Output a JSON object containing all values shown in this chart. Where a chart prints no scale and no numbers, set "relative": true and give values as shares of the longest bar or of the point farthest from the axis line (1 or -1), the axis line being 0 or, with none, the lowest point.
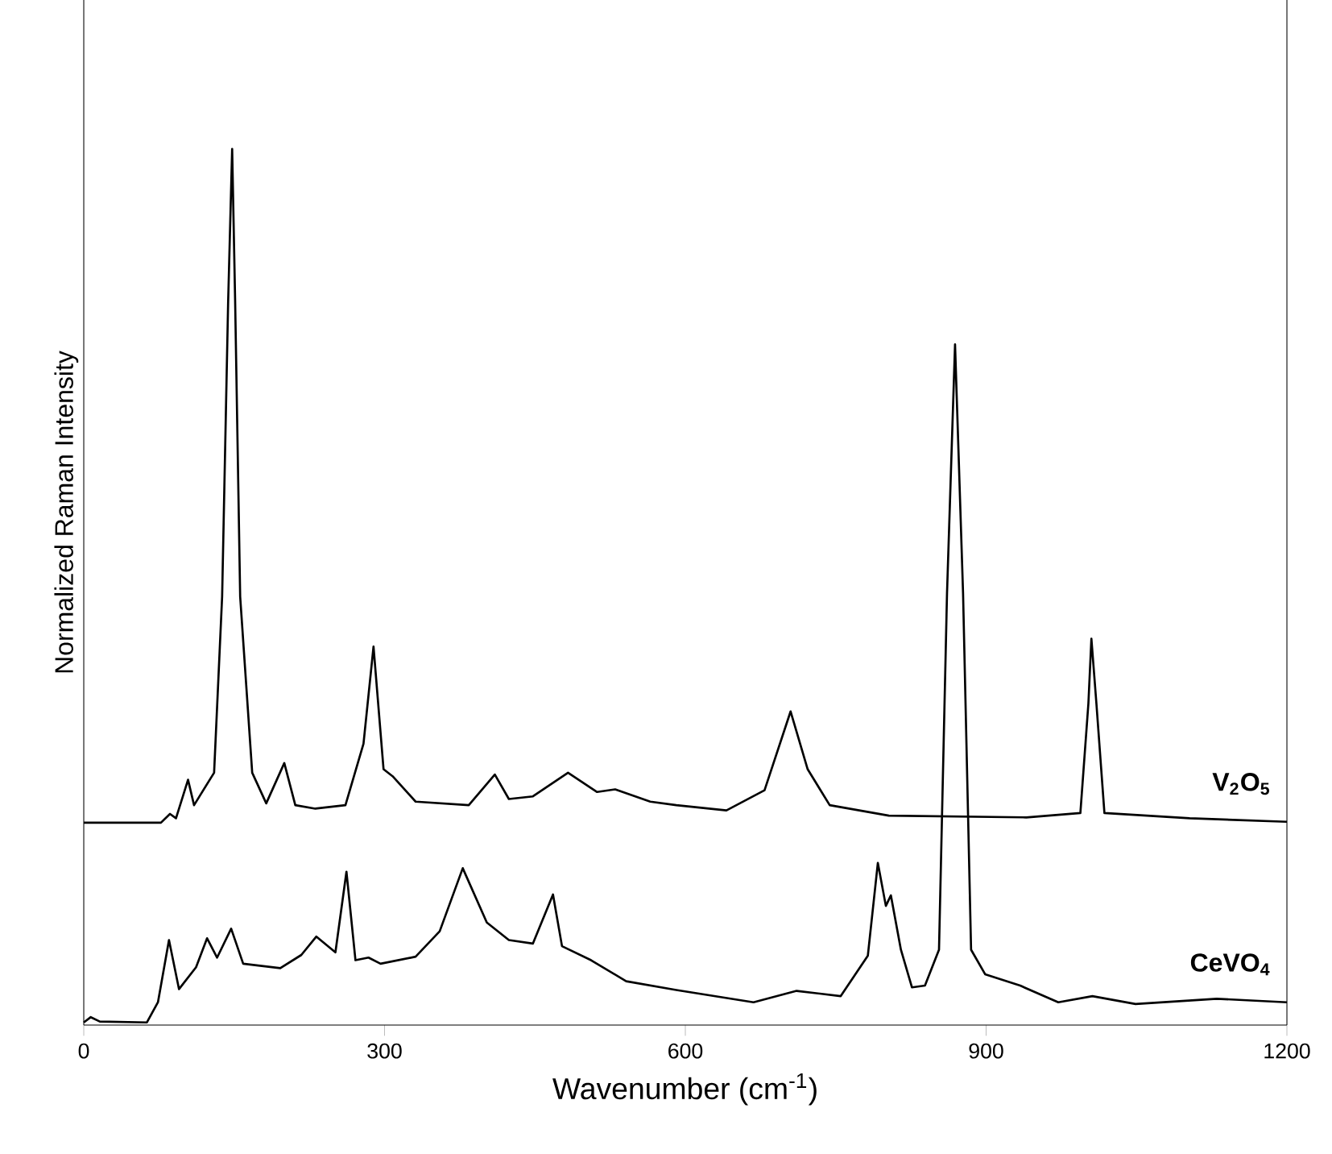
{
  "chart_data": {
    "type": "line",
    "relative": true,
    "xlabel": "Wavenumber (cm$^{-1}$)",
    "ylabel": "Normalized Raman Intensity",
    "xlim": [
      0,
      1200
    ],
    "xticks": [
      0,
      300,
      600,
      900,
      1200
    ],
    "tick_labels": "x",
    "line_style": "solid",
    "series": [
      {
        "name": "V$_{2}$O$_{5}$",
        "color": "#000000",
        "x": [
          0,
          40,
          77,
          86,
          92,
          104,
          110,
          130,
          138,
          144,
          148,
          151,
          156,
          168,
          182,
          200,
          211,
          231,
          261,
          279,
          289,
          299,
          308,
          331,
          384,
          410,
          424,
          448,
          483,
          512,
          530,
          565,
          591,
          641,
          679,
          705,
          722,
          744,
          803,
          940,
          994,
          1002,
          1005,
          1010,
          1018,
          1103,
          1200
        ],
        "values": [
          0.231,
          0.231,
          0.231,
          0.241,
          0.236,
          0.28,
          0.251,
          0.288,
          0.489,
          0.825,
          1.0,
          0.825,
          0.489,
          0.288,
          0.253,
          0.299,
          0.251,
          0.247,
          0.251,
          0.321,
          0.432,
          0.292,
          0.284,
          0.255,
          0.251,
          0.286,
          0.258,
          0.261,
          0.288,
          0.266,
          0.269,
          0.255,
          0.251,
          0.245,
          0.268,
          0.358,
          0.292,
          0.251,
          0.239,
          0.237,
          0.242,
          0.367,
          0.441,
          0.367,
          0.242,
          0.236,
          0.232
        ]
      },
      {
        "name": "CeVO$_{4}$",
        "color": "#000000",
        "x": [
          0,
          7,
          16,
          63,
          74,
          85,
          95,
          112,
          123,
          133,
          147,
          159,
          196,
          217,
          232,
          251,
          262,
          271,
          284,
          296,
          331,
          355,
          378,
          402,
          424,
          448,
          468,
          477,
          506,
          541,
          591,
          668,
          711,
          755,
          782,
          792,
          800,
          805,
          815,
          826,
          839,
          853,
          861,
          869,
          877,
          885,
          899,
          934,
          972,
          1006,
          1049,
          1130,
          1200
        ],
        "values": [
          0.003,
          0.009,
          0.004,
          0.003,
          0.026,
          0.097,
          0.041,
          0.066,
          0.099,
          0.077,
          0.11,
          0.07,
          0.065,
          0.08,
          0.101,
          0.083,
          0.175,
          0.074,
          0.077,
          0.07,
          0.078,
          0.107,
          0.179,
          0.117,
          0.097,
          0.093,
          0.149,
          0.09,
          0.074,
          0.05,
          0.04,
          0.026,
          0.039,
          0.033,
          0.079,
          0.185,
          0.136,
          0.148,
          0.086,
          0.043,
          0.045,
          0.086,
          0.493,
          0.777,
          0.493,
          0.086,
          0.058,
          0.045,
          0.026,
          0.033,
          0.024,
          0.03,
          0.026
        ]
      }
    ]
  }
}
